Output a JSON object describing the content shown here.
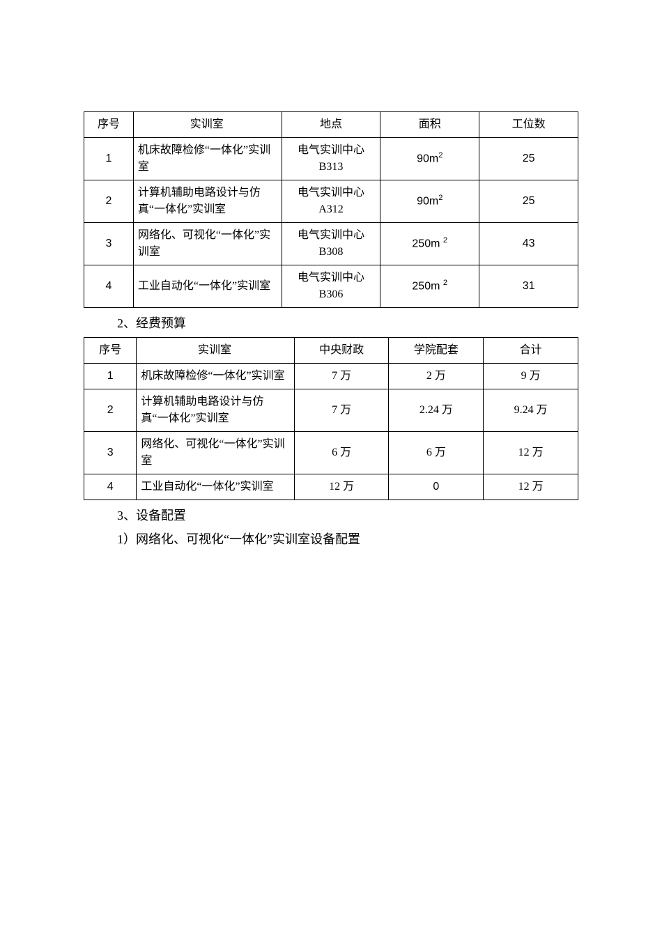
{
  "table1": {
    "headers": [
      "序号",
      "实训室",
      "地点",
      "面积",
      "工位数"
    ],
    "rows": [
      {
        "seq": "1",
        "room": "机床故障检修“一体化”实训室",
        "loc": "电气实训中心B313",
        "area_val": "90",
        "area_unit": "m",
        "area_sup": "2",
        "workstations": "25"
      },
      {
        "seq": "2",
        "room": "计算机辅助电路设计与仿真“一体化”实训室",
        "loc": "电气实训中心A312",
        "area_val": "90",
        "area_unit": "m",
        "area_sup": "2",
        "workstations": "25"
      },
      {
        "seq": "3",
        "room": "网络化、可视化“一体化”实训室",
        "loc": "电气实训中心B308",
        "area_val": "250",
        "area_unit": "m ",
        "area_sup": "2",
        "workstations": "43"
      },
      {
        "seq": "4",
        "room": "工业自动化“一体化”实训室",
        "loc": "电气实训中心B306",
        "area_val": "250",
        "area_unit": "m ",
        "area_sup": "2",
        "workstations": "31"
      }
    ]
  },
  "heading2": "2、经费预算",
  "table2": {
    "headers": [
      "序号",
      "实训室",
      "中央财政",
      "学院配套",
      "合计"
    ],
    "rows": [
      {
        "seq": "1",
        "room": "机床故障检修“一体化”实训室",
        "central": "7 万",
        "college": "2 万",
        "total": "9 万"
      },
      {
        "seq": "2",
        "room": "计算机辅助电路设计与仿真“一体化”实训室",
        "central": "7 万",
        "college": "2.24 万",
        "total": "9.24 万"
      },
      {
        "seq": "3",
        "room": "网络化、可视化“一体化”实训室",
        "central": "6 万",
        "college": "6 万",
        "total": "12 万"
      },
      {
        "seq": "4",
        "room": "工业自动化“一体化”实训室",
        "central": "12 万",
        "college": "0",
        "total": "12 万"
      }
    ]
  },
  "heading3": "3、设备配置",
  "heading4": "1）网络化、可视化“一体化”实训室设备配置"
}
